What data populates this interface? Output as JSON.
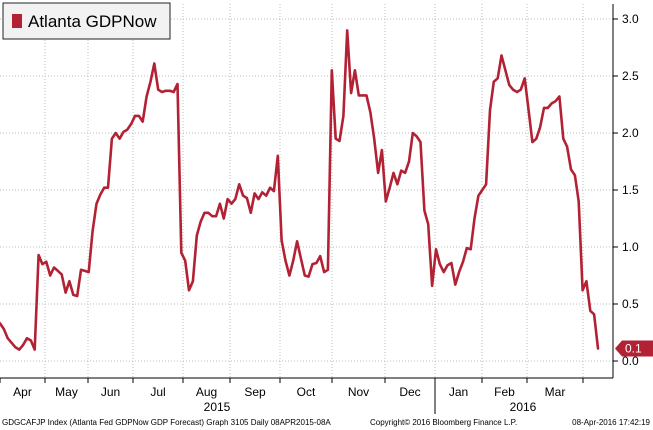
{
  "chart_data": {
    "type": "line",
    "title": "",
    "legend": {
      "entries": [
        "Atlanta GDPNow"
      ],
      "placement": "top-left"
    },
    "series": [
      {
        "name": "Atlanta GDPNow",
        "color": "#b22234",
        "values": [
          0.33,
          0.28,
          0.2,
          0.16,
          0.12,
          0.1,
          0.14,
          0.2,
          0.18,
          0.1,
          0.93,
          0.85,
          0.87,
          0.75,
          0.82,
          0.79,
          0.76,
          0.6,
          0.7,
          0.58,
          0.57,
          0.8,
          0.79,
          0.78,
          1.14,
          1.38,
          1.46,
          1.52,
          1.52,
          1.95,
          2.0,
          1.95,
          2.01,
          2.03,
          2.08,
          2.15,
          2.15,
          2.1,
          2.32,
          2.45,
          2.61,
          2.38,
          2.36,
          2.37,
          2.37,
          2.36,
          2.43,
          0.95,
          0.88,
          0.62,
          0.7,
          1.1,
          1.22,
          1.3,
          1.3,
          1.27,
          1.27,
          1.38,
          1.25,
          1.42,
          1.38,
          1.42,
          1.55,
          1.45,
          1.43,
          1.3,
          1.47,
          1.42,
          1.48,
          1.45,
          1.52,
          1.49,
          1.8,
          1.06,
          0.88,
          0.75,
          0.88,
          1.05,
          0.9,
          0.75,
          0.74,
          0.85,
          0.86,
          0.92,
          0.78,
          0.8,
          2.55,
          1.95,
          1.93,
          2.15,
          2.9,
          2.35,
          2.55,
          2.33,
          2.33,
          2.33,
          2.18,
          1.95,
          1.65,
          1.85,
          1.4,
          1.52,
          1.65,
          1.55,
          1.67,
          1.65,
          1.75,
          2.0,
          1.97,
          1.92,
          1.32,
          1.2,
          0.66,
          0.98,
          0.85,
          0.78,
          0.84,
          0.86,
          0.67,
          0.78,
          0.87,
          0.99,
          0.98,
          1.25,
          1.45,
          1.5,
          1.55,
          2.2,
          2.45,
          2.48,
          2.68,
          2.55,
          2.42,
          2.38,
          2.36,
          2.38,
          2.48,
          2.2,
          1.92,
          1.95,
          2.05,
          2.22,
          2.22,
          2.26,
          2.28,
          2.32,
          1.95,
          1.88,
          1.68,
          1.63,
          1.4,
          0.62,
          0.7,
          0.44,
          0.41,
          0.11
        ],
        "last_value_label": "0.1"
      }
    ],
    "x_month_labels": [
      "Apr",
      "May",
      "Jun",
      "Jul",
      "Aug",
      "Sep",
      "Oct",
      "Nov",
      "Dec",
      "Jan",
      "Feb",
      "Mar"
    ],
    "x_year_labels": [
      "2015",
      "2016"
    ],
    "yticks": [
      "0.0",
      "0.5",
      "1.0",
      "1.5",
      "2.0",
      "2.5",
      "3.0"
    ],
    "ylim": [
      -0.1,
      3.05
    ],
    "y_axis_side": "right",
    "grid": true,
    "grid_style": "dotted",
    "xlabel": "",
    "ylabel": ""
  },
  "footer": {
    "left": "GDGCAFJP Index (Atlanta Fed GDPNow GDP Forecast) Graph 3105  Daily 08APR2015-08A",
    "middle": "Copyright© 2016 Bloomberg Finance L.P.",
    "right": "08-Apr-2016 17:42:19"
  }
}
